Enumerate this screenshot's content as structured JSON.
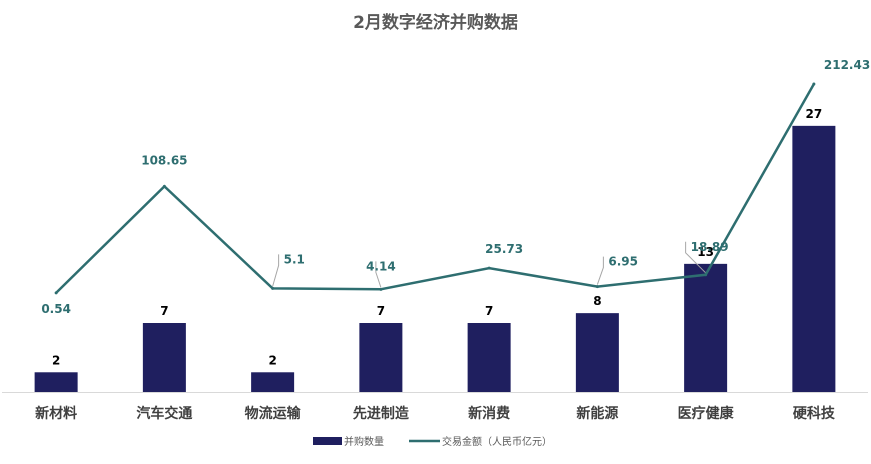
{
  "chart_data": {
    "type": "bar",
    "title": "2月数字经济并购数据",
    "categories": [
      "新材料",
      "汽车交通",
      "物流运输",
      "先进制造",
      "新消费",
      "新能源",
      "医疗健康",
      "硬科技"
    ],
    "series": [
      {
        "name": "并购数量",
        "type": "bar",
        "axis": "left",
        "values": [
          2,
          7,
          2,
          7,
          7,
          8,
          13,
          27
        ]
      },
      {
        "name": "交易金额（人民币亿元）",
        "type": "line",
        "axis": "right",
        "values": [
          0.54,
          108.65,
          5.1,
          4.14,
          25.73,
          6.95,
          18.89,
          212.43
        ]
      }
    ],
    "bar_labels": [
      "2",
      "7",
      "2",
      "7",
      "7",
      "8",
      "13",
      "27"
    ],
    "line_labels": [
      "0.54",
      "108.65",
      "5.1",
      "4.14",
      "25.73",
      "6.95",
      "18.89",
      "212.43"
    ],
    "ylim_left": [
      0,
      35
    ],
    "ylim_right": [
      -100,
      250
    ],
    "grid": false,
    "legend_position": "bottom",
    "colors": {
      "bar": "#1F1F5F",
      "line": "#2E6E70",
      "axis": "#D9D9D9",
      "leader": "#A6A6A6"
    }
  }
}
